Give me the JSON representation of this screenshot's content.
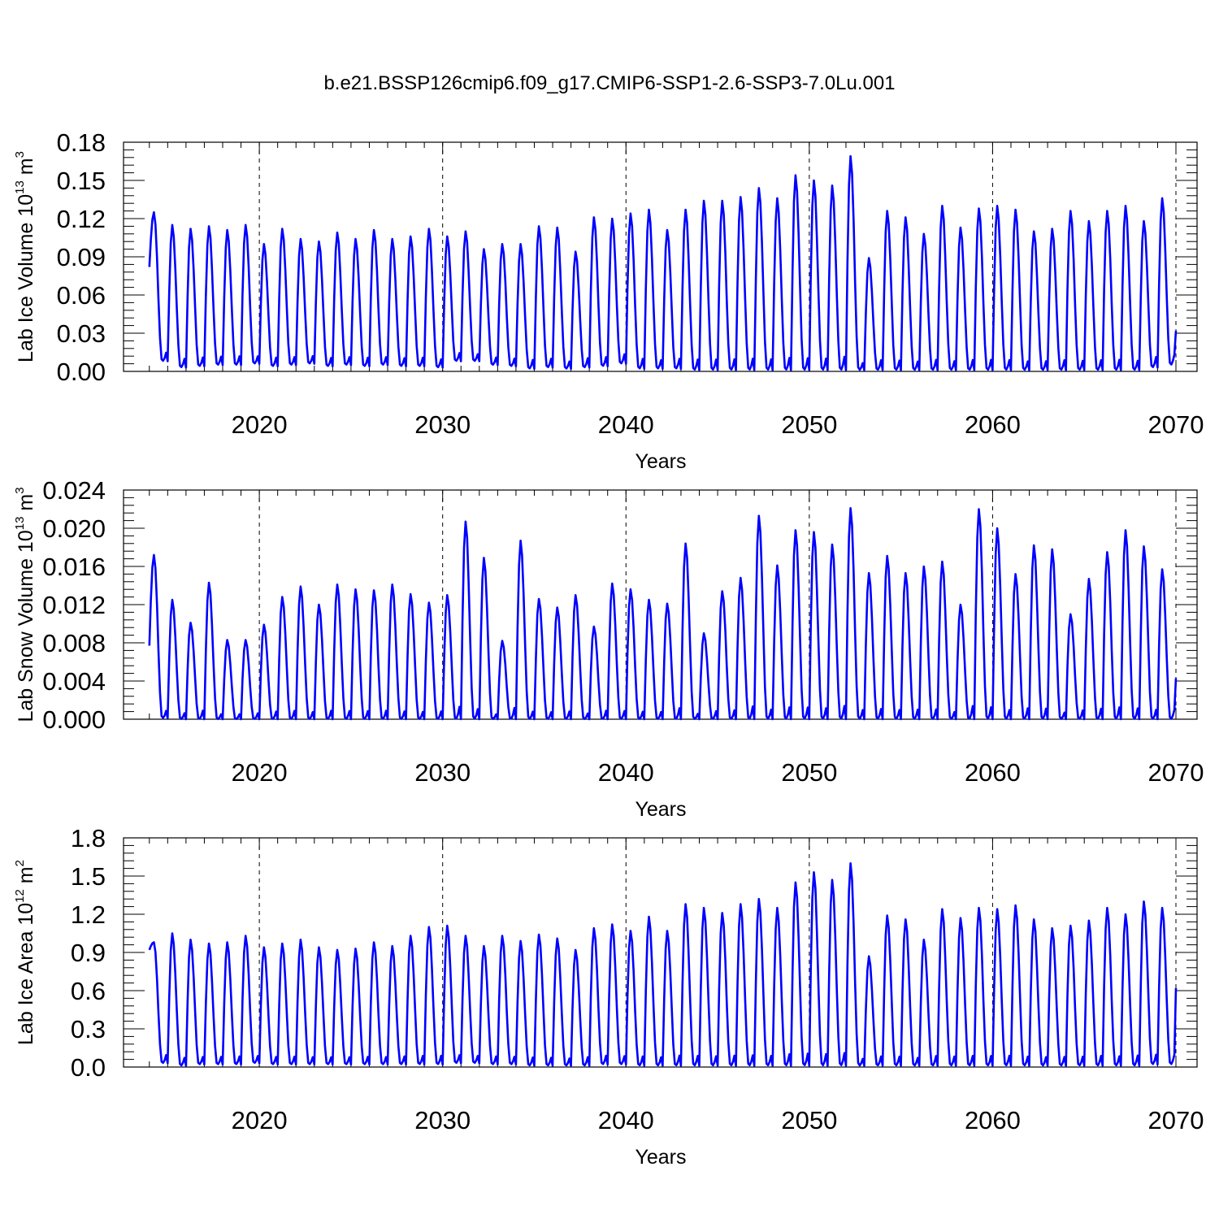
{
  "title": "b.e21.BSSP126cmip6.f09_g17.CMIP6-SSP1-2.6-SSP3-7.0Lu.001",
  "line_color": "#0000ff",
  "chart_data": [
    {
      "type": "line",
      "ylabel": {
        "main": "Lab Ice Volume 10",
        "exp": "13",
        "unit": " m",
        "unit_exp": "3"
      },
      "xlabel": "Years",
      "xlim": [
        2013.7,
        2070.0
      ],
      "ylim": [
        0.0,
        0.18
      ],
      "yticks": [
        "0.00",
        "0.03",
        "0.06",
        "0.09",
        "0.12",
        "0.15",
        "0.18"
      ],
      "ytick_values": [
        0.0,
        0.03,
        0.06,
        0.09,
        0.12,
        0.15,
        0.18
      ],
      "xticks": [
        "2020",
        "2030",
        "2040",
        "2050",
        "2060",
        "2070"
      ],
      "xtick_values": [
        2020,
        2030,
        2040,
        2050,
        2060,
        2070
      ],
      "series": [
        {
          "name": "Lab Ice Volume",
          "start_year": 2014,
          "peaks": [
            0.125,
            0.115,
            0.112,
            0.114,
            0.111,
            0.115,
            0.1,
            0.112,
            0.104,
            0.102,
            0.109,
            0.104,
            0.111,
            0.104,
            0.106,
            0.112,
            0.106,
            0.11,
            0.096,
            0.1,
            0.1,
            0.114,
            0.113,
            0.094,
            0.121,
            0.12,
            0.124,
            0.127,
            0.111,
            0.127,
            0.134,
            0.134,
            0.137,
            0.144,
            0.136,
            0.154,
            0.15,
            0.146,
            0.169,
            0.089,
            0.126,
            0.121,
            0.108,
            0.13,
            0.113,
            0.128,
            0.13,
            0.127,
            0.11,
            0.112,
            0.126,
            0.118,
            0.126,
            0.13,
            0.118,
            0.136
          ],
          "troughs": [
            0.008,
            0.003,
            0.004,
            0.005,
            0.005,
            0.006,
            0.004,
            0.005,
            0.006,
            0.004,
            0.005,
            0.004,
            0.005,
            0.004,
            0.004,
            0.003,
            0.008,
            0.008,
            0.005,
            0.004,
            0.002,
            0.003,
            0.002,
            0.003,
            0.004,
            0.006,
            0.002,
            0.002,
            0.002,
            0.001,
            0.001,
            0.001,
            0.001,
            0.001,
            0.001,
            0.001,
            0.001,
            0.001,
            0.001,
            0.001,
            0.001,
            0.001,
            0.001,
            0.001,
            0.001,
            0.001,
            0.001,
            0.001,
            0.001,
            0.001,
            0.001,
            0.001,
            0.001,
            0.001,
            0.003,
            0.005
          ],
          "first_value": 0.082,
          "last_value": 0.032
        }
      ]
    },
    {
      "type": "line",
      "ylabel": {
        "main": "Lab Snow Volume 10",
        "exp": "13",
        "unit": " m",
        "unit_exp": "3"
      },
      "xlabel": "Years",
      "xlim": [
        2013.7,
        2070.0
      ],
      "ylim": [
        0.0,
        0.024
      ],
      "yticks": [
        "0.000",
        "0.004",
        "0.008",
        "0.012",
        "0.016",
        "0.020",
        "0.024"
      ],
      "ytick_values": [
        0.0,
        0.004,
        0.008,
        0.012,
        0.016,
        0.02,
        0.024
      ],
      "xticks": [
        "2020",
        "2030",
        "2040",
        "2050",
        "2060",
        "2070"
      ],
      "xtick_values": [
        2020,
        2030,
        2040,
        2050,
        2060,
        2070
      ],
      "series": [
        {
          "name": "Lab Snow Volume",
          "start_year": 2014,
          "peaks": [
            0.0172,
            0.0125,
            0.0101,
            0.0143,
            0.0083,
            0.0083,
            0.0099,
            0.0128,
            0.0139,
            0.012,
            0.0141,
            0.0136,
            0.0135,
            0.0141,
            0.0131,
            0.0122,
            0.013,
            0.0207,
            0.0169,
            0.0082,
            0.0187,
            0.0126,
            0.0117,
            0.013,
            0.0097,
            0.0142,
            0.0136,
            0.0125,
            0.0121,
            0.0184,
            0.009,
            0.0134,
            0.0148,
            0.0213,
            0.0161,
            0.0198,
            0.0196,
            0.0183,
            0.0221,
            0.0153,
            0.0171,
            0.0153,
            0.016,
            0.0165,
            0.012,
            0.022,
            0.02,
            0.0152,
            0.0182,
            0.0178,
            0.011,
            0.0147,
            0.0175,
            0.0198,
            0.0181,
            0.0157
          ],
          "troughs": [
            0.0001,
            0.0,
            0.0,
            0.0,
            0.0,
            0.0,
            0.0,
            0.0,
            0.0,
            0.0,
            0.0,
            0.0,
            0.0,
            0.0,
            0.0,
            0.0,
            0.0,
            0.0,
            0.0,
            0.0,
            0.0,
            0.0,
            0.0,
            0.0,
            0.0,
            0.0,
            0.0,
            0.0,
            0.0,
            0.0,
            0.0,
            0.0,
            0.0,
            0.0,
            0.0,
            0.0,
            0.0,
            0.0,
            0.0,
            0.0,
            0.0,
            0.0,
            0.0,
            0.0,
            0.0,
            0.0,
            0.0,
            0.0,
            0.0,
            0.0,
            0.0,
            0.0,
            0.0,
            0.0,
            0.0,
            0.0
          ],
          "first_value": 0.0077,
          "last_value": 0.0043
        }
      ]
    },
    {
      "type": "line",
      "ylabel": {
        "main": "Lab Ice Area 10",
        "exp": "12",
        "unit": " m",
        "unit_exp": "2"
      },
      "xlabel": "Years",
      "xlim": [
        2013.7,
        2070.0
      ],
      "ylim": [
        0.0,
        1.8
      ],
      "yticks": [
        "0.0",
        "0.3",
        "0.6",
        "0.9",
        "1.2",
        "1.5",
        "1.8"
      ],
      "ytick_values": [
        0.0,
        0.3,
        0.6,
        0.9,
        1.2,
        1.5,
        1.8
      ],
      "xticks": [
        "2020",
        "2030",
        "2040",
        "2050",
        "2060",
        "2070"
      ],
      "xtick_values": [
        2020,
        2030,
        2040,
        2050,
        2060,
        2070
      ],
      "series": [
        {
          "name": "Lab Ice Area",
          "start_year": 2014,
          "peaks": [
            0.98,
            1.05,
            1.0,
            0.97,
            0.98,
            1.03,
            0.94,
            0.97,
            1.0,
            0.94,
            0.92,
            0.93,
            0.98,
            0.95,
            1.03,
            1.1,
            1.11,
            1.03,
            0.95,
            1.03,
            0.99,
            1.04,
            1.01,
            0.92,
            1.09,
            1.12,
            1.07,
            1.18,
            1.07,
            1.28,
            1.25,
            1.21,
            1.28,
            1.32,
            1.25,
            1.45,
            1.53,
            1.47,
            1.6,
            0.87,
            1.19,
            1.16,
            1.0,
            1.24,
            1.17,
            1.25,
            1.24,
            1.27,
            1.16,
            1.09,
            1.11,
            1.15,
            1.25,
            1.2,
            1.3,
            1.25
          ],
          "troughs": [
            0.03,
            0.01,
            0.02,
            0.02,
            0.02,
            0.03,
            0.02,
            0.02,
            0.02,
            0.02,
            0.02,
            0.02,
            0.02,
            0.02,
            0.02,
            0.02,
            0.03,
            0.03,
            0.02,
            0.02,
            0.01,
            0.01,
            0.01,
            0.01,
            0.02,
            0.02,
            0.01,
            0.01,
            0.01,
            0.01,
            0.01,
            0.01,
            0.01,
            0.01,
            0.01,
            0.01,
            0.01,
            0.01,
            0.01,
            0.01,
            0.01,
            0.01,
            0.01,
            0.01,
            0.01,
            0.01,
            0.01,
            0.01,
            0.01,
            0.01,
            0.01,
            0.01,
            0.01,
            0.01,
            0.02,
            0.02
          ],
          "first_value": 0.92,
          "last_value": 0.62
        }
      ]
    }
  ]
}
